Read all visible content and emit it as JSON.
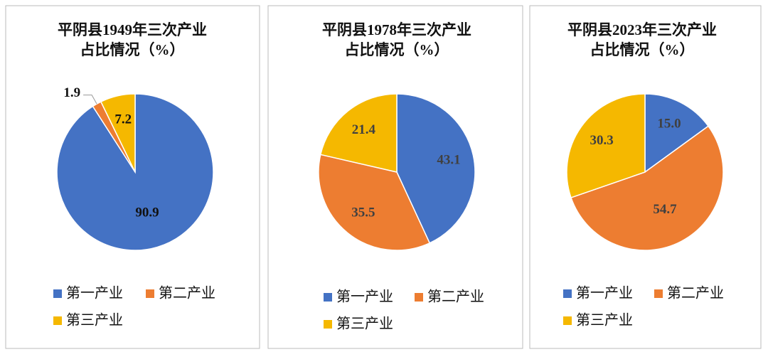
{
  "chart_data": [
    {
      "type": "pie",
      "title": [
        "平阴县1949年三次产业",
        "占比情况（%）"
      ],
      "categories": [
        "第一产业",
        "第二产业",
        "第三产业"
      ],
      "values": [
        90.9,
        1.9,
        7.2
      ],
      "value_labels": [
        "90.9",
        "1.9",
        "7.2"
      ],
      "colors": [
        "#4472c4",
        "#ed7d31",
        "#f5b800"
      ]
    },
    {
      "type": "pie",
      "title": [
        "平阴县1978年三次产业",
        "占比情况（%）"
      ],
      "categories": [
        "第一产业",
        "第二产业",
        "第三产业"
      ],
      "values": [
        43.1,
        35.5,
        21.4
      ],
      "value_labels": [
        "43.1",
        "35.5",
        "21.4"
      ],
      "colors": [
        "#4472c4",
        "#ed7d31",
        "#f5b800"
      ]
    },
    {
      "type": "pie",
      "title": [
        "平阴县2023年三次产业",
        "占比情况（%）"
      ],
      "categories": [
        "第一产业",
        "第二产业",
        "第三产业"
      ],
      "values": [
        15.0,
        54.7,
        30.3
      ],
      "value_labels": [
        "15.0",
        "54.7",
        "30.3"
      ],
      "colors": [
        "#4472c4",
        "#ed7d31",
        "#f5b800"
      ]
    }
  ]
}
